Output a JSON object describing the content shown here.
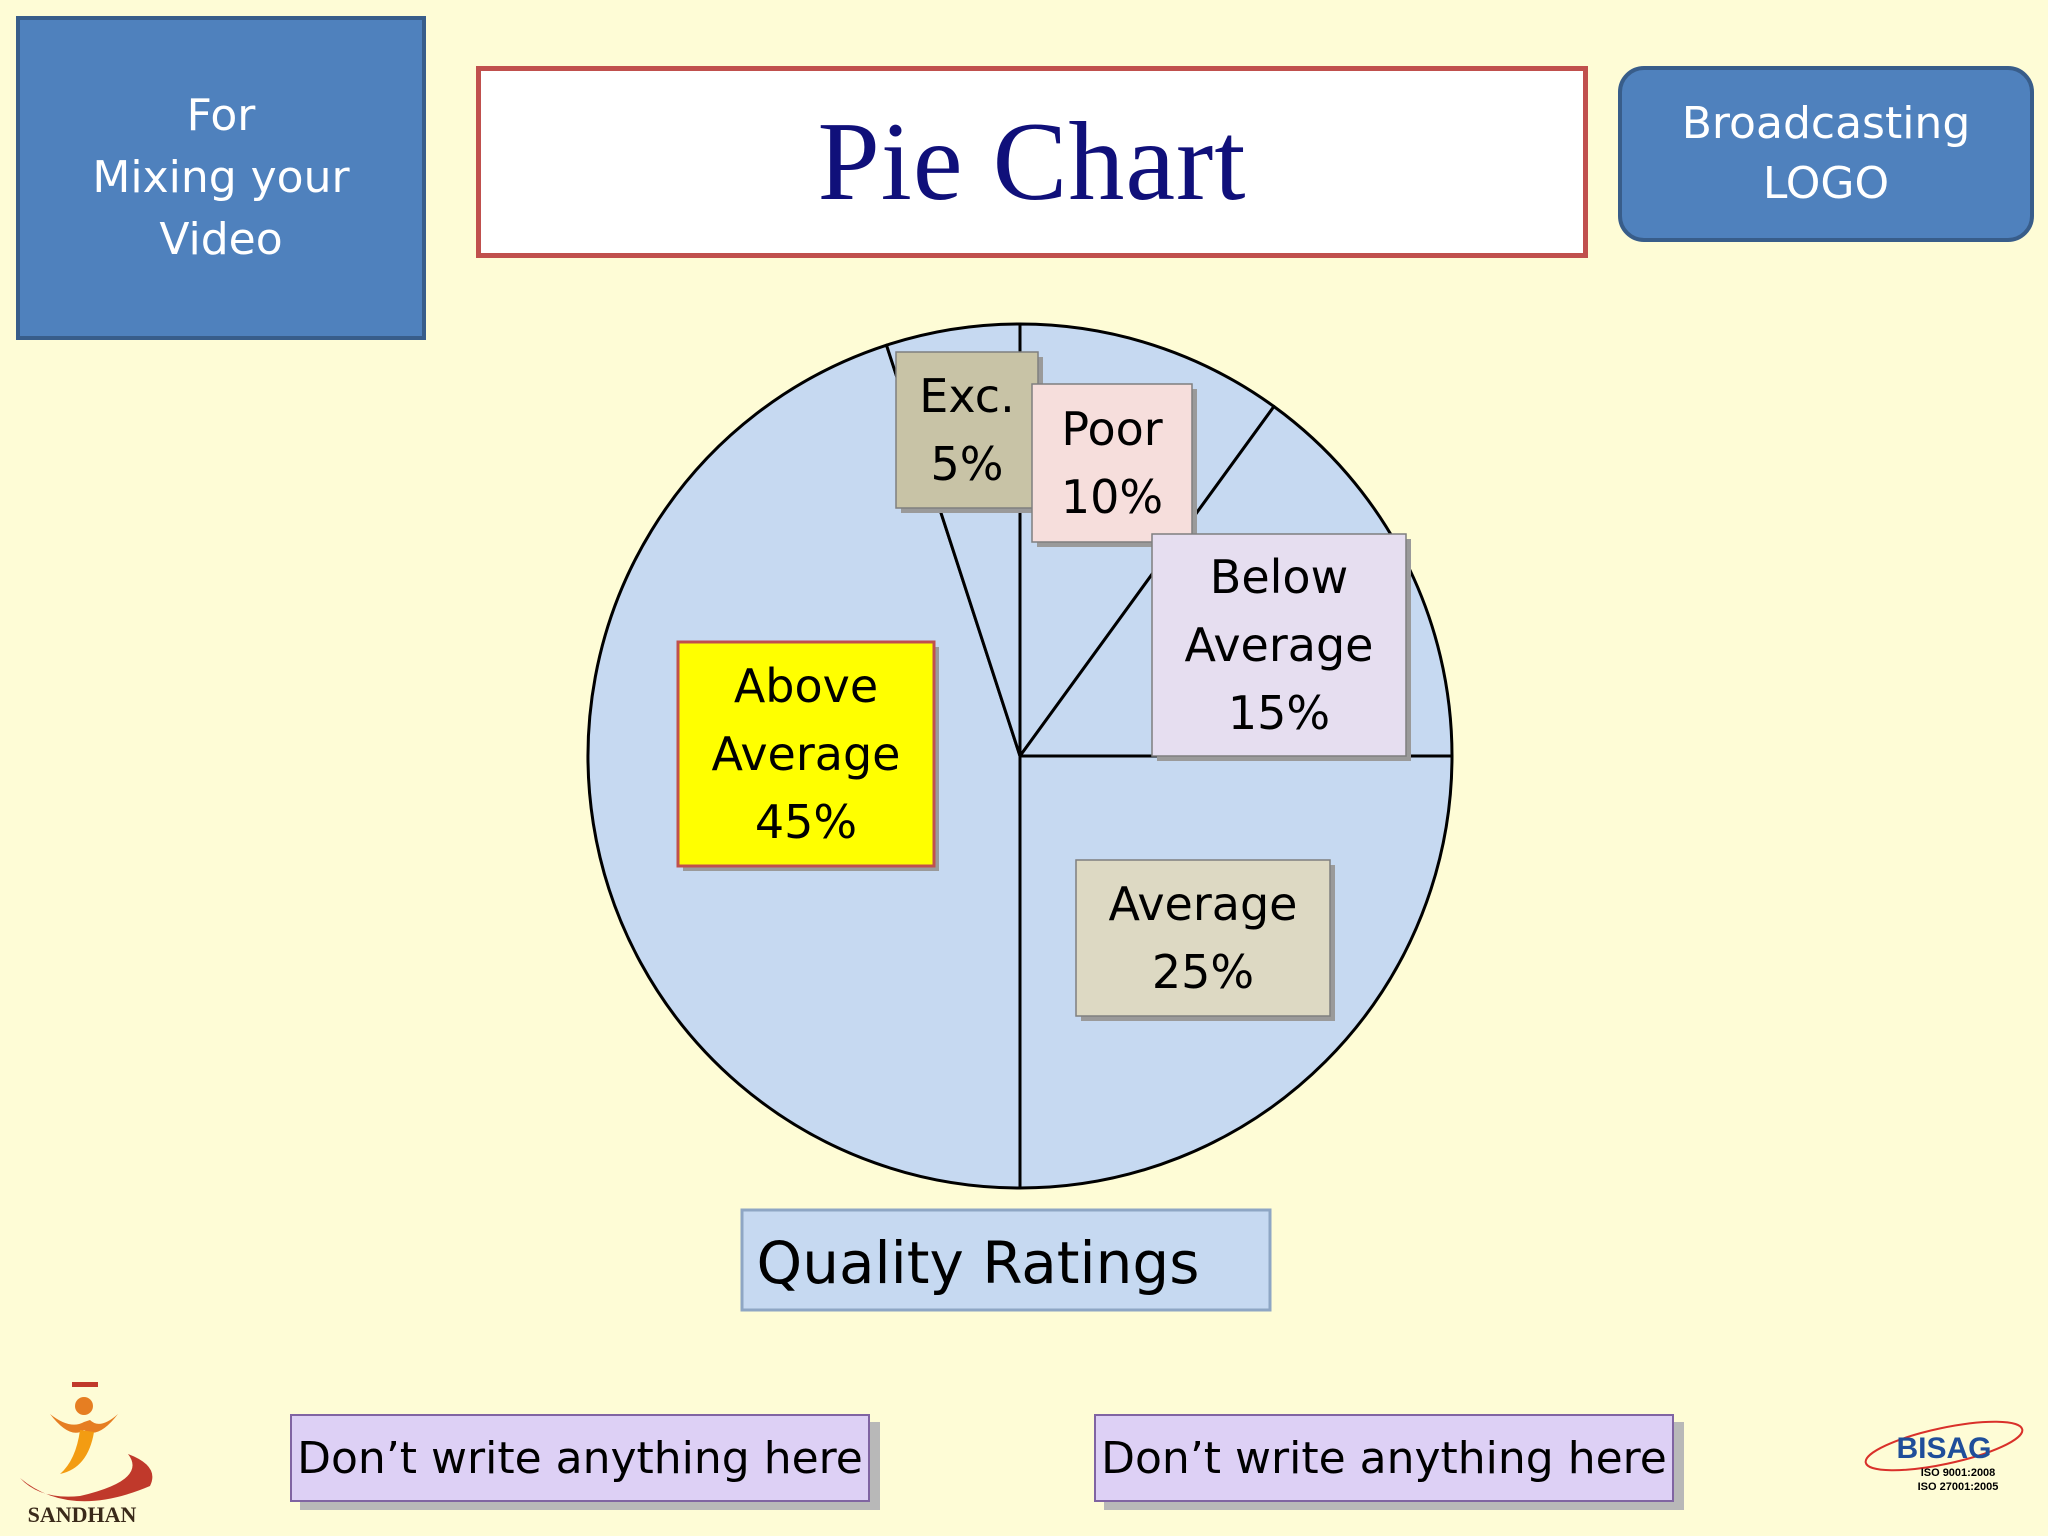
{
  "header": {
    "mix_lines": [
      "For",
      "Mixing your",
      "Video"
    ],
    "title": "Pie Chart",
    "logo_lines": [
      "Broadcasting",
      "LOGO"
    ]
  },
  "chart_data": {
    "type": "pie",
    "title": "Quality Ratings",
    "slices": [
      {
        "label": "Exc.",
        "value": 5,
        "value_label": "5%",
        "box_color": "#c8c3a6",
        "label_lines": [
          "Exc.",
          "5%"
        ]
      },
      {
        "label": "Poor",
        "value": 10,
        "value_label": "10%",
        "box_color": "#f6dedc",
        "label_lines": [
          "Poor",
          "10%"
        ]
      },
      {
        "label": "Below Average",
        "value": 15,
        "value_label": "15%",
        "box_color": "#e6def0",
        "label_lines": [
          "Below",
          "Average",
          "15%"
        ]
      },
      {
        "label": "Average",
        "value": 25,
        "value_label": "25%",
        "box_color": "#ddd9c3",
        "label_lines": [
          "Average",
          "25%"
        ]
      },
      {
        "label": "Above Average",
        "value": 45,
        "value_label": "45%",
        "box_color": "#ffff00",
        "label_lines": [
          "Above",
          "Average",
          "45%"
        ]
      }
    ],
    "slice_fill": "#c6d9f1",
    "caption_fill": "#c6d9f1"
  },
  "footer": {
    "left_text": "Don’t write anything here",
    "right_text": "Don’t write anything here"
  },
  "logos": {
    "left_name": "SANDHAN",
    "right_name": "BISAG",
    "right_iso": [
      "ISO 9001:2008",
      "ISO 27001:2005"
    ]
  }
}
